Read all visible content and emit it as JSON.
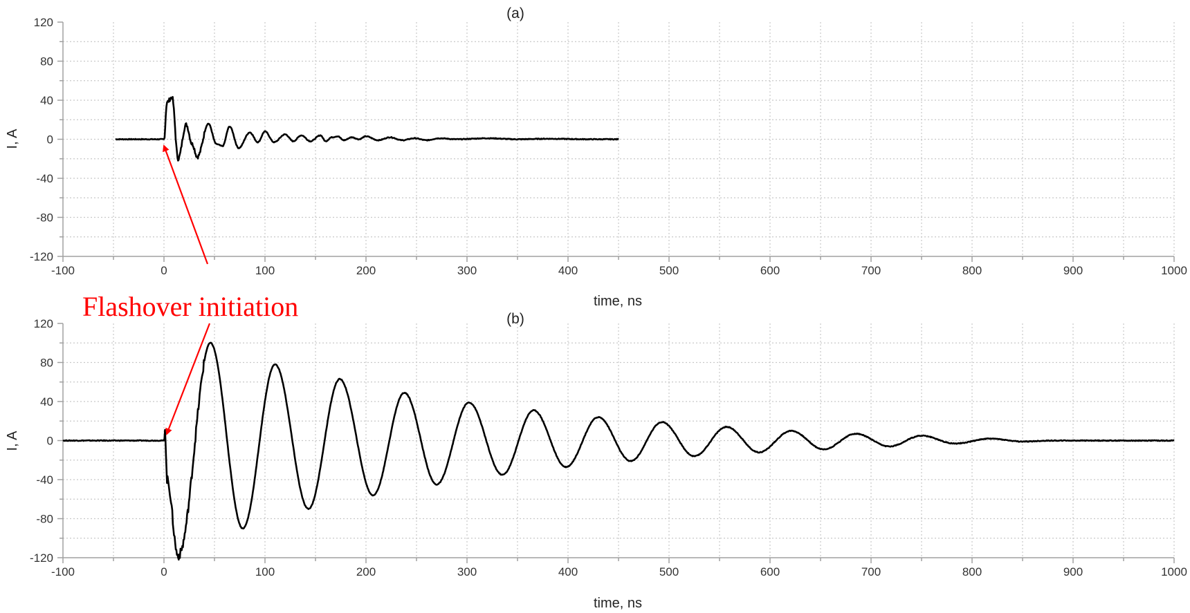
{
  "chart_data": [
    {
      "type": "line",
      "title": "(a)",
      "xlabel": "time, ns",
      "ylabel": "I, A",
      "xlim": [
        -100,
        1000
      ],
      "ylim": [
        -120,
        120
      ],
      "xticks": [
        -100,
        0,
        100,
        200,
        300,
        400,
        500,
        600,
        700,
        800,
        900,
        1000
      ],
      "yticks": [
        -120,
        -80,
        -40,
        0,
        40,
        80,
        120
      ],
      "grid": true,
      "series": [
        {
          "name": "current",
          "color": "#000000",
          "x_start": -48,
          "x_end": 450,
          "extrema": [
            [
              0,
              0
            ],
            [
              3,
              38
            ],
            [
              8,
              43
            ],
            [
              14,
              -20
            ],
            [
              22,
              15
            ],
            [
              28,
              -5
            ],
            [
              33,
              -18
            ],
            [
              44,
              16
            ],
            [
              52,
              -5
            ],
            [
              58,
              -7
            ],
            [
              65,
              13
            ],
            [
              74,
              -9
            ],
            [
              85,
              7
            ],
            [
              93,
              -3
            ],
            [
              100,
              8
            ],
            [
              109,
              -3
            ],
            [
              120,
              5
            ],
            [
              128,
              -2
            ],
            [
              136,
              4
            ],
            [
              145,
              -2
            ],
            [
              155,
              4
            ],
            [
              160,
              -2
            ],
            [
              166,
              2
            ],
            [
              172,
              3
            ],
            [
              178,
              -1
            ],
            [
              186,
              2
            ],
            [
              193,
              0
            ],
            [
              200,
              3
            ],
            [
              212,
              -1
            ],
            [
              224,
              2
            ],
            [
              236,
              -1
            ],
            [
              248,
              1
            ],
            [
              260,
              -1
            ],
            [
              272,
              1
            ],
            [
              290,
              0
            ],
            [
              320,
              1
            ],
            [
              350,
              0
            ],
            [
              380,
              0.5
            ],
            [
              420,
              0
            ],
            [
              450,
              0
            ]
          ]
        }
      ]
    },
    {
      "type": "line",
      "title": "(b)",
      "xlabel": "time, ns",
      "ylabel": "I, A",
      "xlim": [
        -100,
        1000
      ],
      "ylim": [
        -120,
        120
      ],
      "xticks": [
        -100,
        0,
        100,
        200,
        300,
        400,
        500,
        600,
        700,
        800,
        900,
        1000
      ],
      "yticks": [
        -120,
        -80,
        -40,
        0,
        40,
        80,
        120
      ],
      "grid": true,
      "series": [
        {
          "name": "current",
          "color": "#000000",
          "x_start": -100,
          "x_end": 1000,
          "extrema": [
            [
              0,
              0
            ],
            [
              1,
              12
            ],
            [
              3,
              -40
            ],
            [
              14,
              -118
            ],
            [
              46,
              100
            ],
            [
              78,
              -90
            ],
            [
              110,
              78
            ],
            [
              143,
              -70
            ],
            [
              174,
              63
            ],
            [
              207,
              -56
            ],
            [
              238,
              49
            ],
            [
              270,
              -45
            ],
            [
              302,
              39
            ],
            [
              335,
              -35
            ],
            [
              366,
              31
            ],
            [
              398,
              -27
            ],
            [
              430,
              24
            ],
            [
              462,
              -21
            ],
            [
              493,
              19
            ],
            [
              525,
              -16
            ],
            [
              557,
              14
            ],
            [
              589,
              -12
            ],
            [
              621,
              10
            ],
            [
              653,
              -9
            ],
            [
              685,
              7
            ],
            [
              718,
              -6
            ],
            [
              750,
              5
            ],
            [
              783,
              -3
            ],
            [
              818,
              2
            ],
            [
              850,
              -1
            ],
            [
              880,
              0
            ],
            [
              1000,
              0
            ]
          ]
        }
      ]
    }
  ],
  "annotation": {
    "text": "Flashover initiation",
    "color": "#ff0000"
  },
  "panels": [
    {
      "label": "(a)",
      "xlabel": "time, ns",
      "ylabel": "I, A"
    },
    {
      "label": "(b)",
      "xlabel": "time, ns",
      "ylabel": "I, A"
    }
  ]
}
